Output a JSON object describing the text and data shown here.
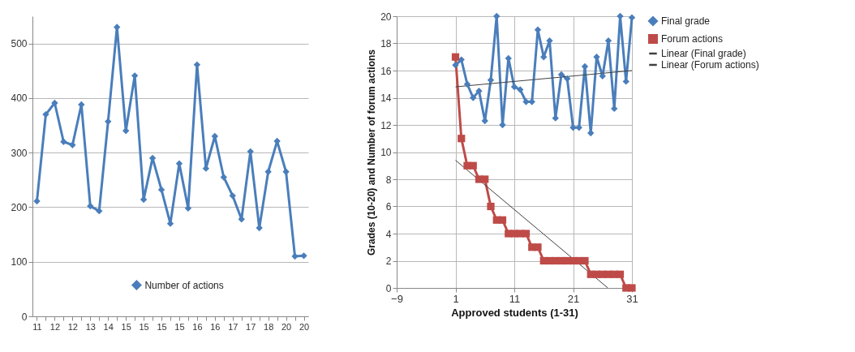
{
  "chart_data": [
    {
      "type": "line",
      "categories": [
        "11",
        null,
        "12",
        null,
        "12",
        null,
        "13",
        null,
        "14",
        null,
        "15",
        null,
        "15",
        null,
        "15",
        null,
        "15",
        null,
        "16",
        null,
        "16",
        null,
        "17",
        null,
        "17",
        null,
        "18",
        null,
        "20",
        null,
        "20"
      ],
      "series": [
        {
          "name": "Number of actions",
          "color": "#4a7ebb",
          "values": [
            211,
            370,
            391,
            320,
            314,
            388,
            202,
            193,
            357,
            530,
            340,
            441,
            214,
            290,
            232,
            170,
            280,
            198,
            461,
            271,
            330,
            255,
            221,
            178,
            302,
            162,
            265,
            321,
            265,
            110,
            111
          ]
        }
      ],
      "ylim": [
        0,
        550
      ],
      "yticks": [
        0,
        100,
        200,
        300,
        400,
        500
      ],
      "grid": "y",
      "legend": "bottom",
      "marker": "diamond"
    },
    {
      "type": "line",
      "xlabel": "Approved students (1-31)",
      "ylabel": "Grades (10-20) and Number of forum actions",
      "x": [
        1,
        2,
        3,
        4,
        5,
        6,
        7,
        8,
        9,
        10,
        11,
        12,
        13,
        14,
        15,
        16,
        17,
        18,
        19,
        20,
        21,
        22,
        23,
        24,
        25,
        26,
        27,
        28,
        29,
        30,
        31
      ],
      "series": [
        {
          "name": "Final grade",
          "color": "#4a7ebb",
          "marker": "diamond",
          "values": [
            16.4,
            16.8,
            15,
            14,
            14.5,
            12.3,
            15.3,
            20,
            12,
            16.9,
            14.8,
            14.6,
            13.7,
            13.7,
            19,
            17,
            18.2,
            12.5,
            15.7,
            15.4,
            11.8,
            11.8,
            16.3,
            11.4,
            17,
            15.6,
            18.2,
            13.2,
            20,
            15.2,
            19.9
          ]
        },
        {
          "name": "Forum actions",
          "color": "#be4b48",
          "marker": "square",
          "values": [
            17,
            11,
            9,
            9,
            8,
            8,
            6,
            5,
            5,
            4,
            4,
            4,
            4,
            3,
            3,
            2,
            2,
            2,
            2,
            2,
            2,
            2,
            2,
            1,
            1,
            1,
            1,
            1,
            1,
            0,
            0
          ]
        },
        {
          "name": "Linear (Final grade)",
          "color": "#404040",
          "marker": "none",
          "x": [
            1,
            31
          ],
          "values": [
            14.8,
            16
          ]
        },
        {
          "name": "Linear (Forum actions)",
          "color": "#404040",
          "marker": "none",
          "x": [
            1,
            26.9
          ],
          "values": [
            9.4,
            0
          ]
        }
      ],
      "xlim": [
        -9,
        31
      ],
      "xticks": [
        -9,
        1,
        11,
        21,
        31
      ],
      "ylim": [
        0,
        20
      ],
      "yticks": [
        0,
        2,
        4,
        6,
        8,
        10,
        12,
        14,
        16,
        18,
        20
      ],
      "grid": true,
      "legend": "right"
    }
  ]
}
